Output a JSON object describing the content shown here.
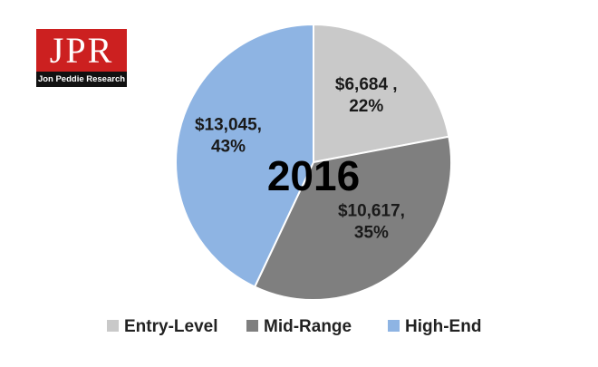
{
  "logo": {
    "letters": "JPR",
    "tagline": "Jon Peddie Research"
  },
  "chart_data": {
    "type": "pie",
    "title": "2016",
    "slices": [
      {
        "name": "Entry-Level",
        "value": 6684,
        "percent": 22,
        "label_line1": "$6,684 ,",
        "label_line2": "22%",
        "color": "#c9c9c9"
      },
      {
        "name": "Mid-Range",
        "value": 10617,
        "percent": 35,
        "label_line1": "$10,617,",
        "label_line2": "35%",
        "color": "#7f7f7f"
      },
      {
        "name": "High-End",
        "value": 13045,
        "percent": 43,
        "label_line1": "$13,045,",
        "label_line2": "43%",
        "color": "#8eb4e3"
      }
    ],
    "legend": [
      "Entry-Level",
      "Mid-Range",
      "High-End"
    ],
    "legend_position": "bottom",
    "start_angle": "12 o'clock",
    "direction": "clockwise"
  },
  "colors": {
    "logo_red": "#cc2020",
    "logo_black": "#111111",
    "slice_border": "#ffffff"
  }
}
